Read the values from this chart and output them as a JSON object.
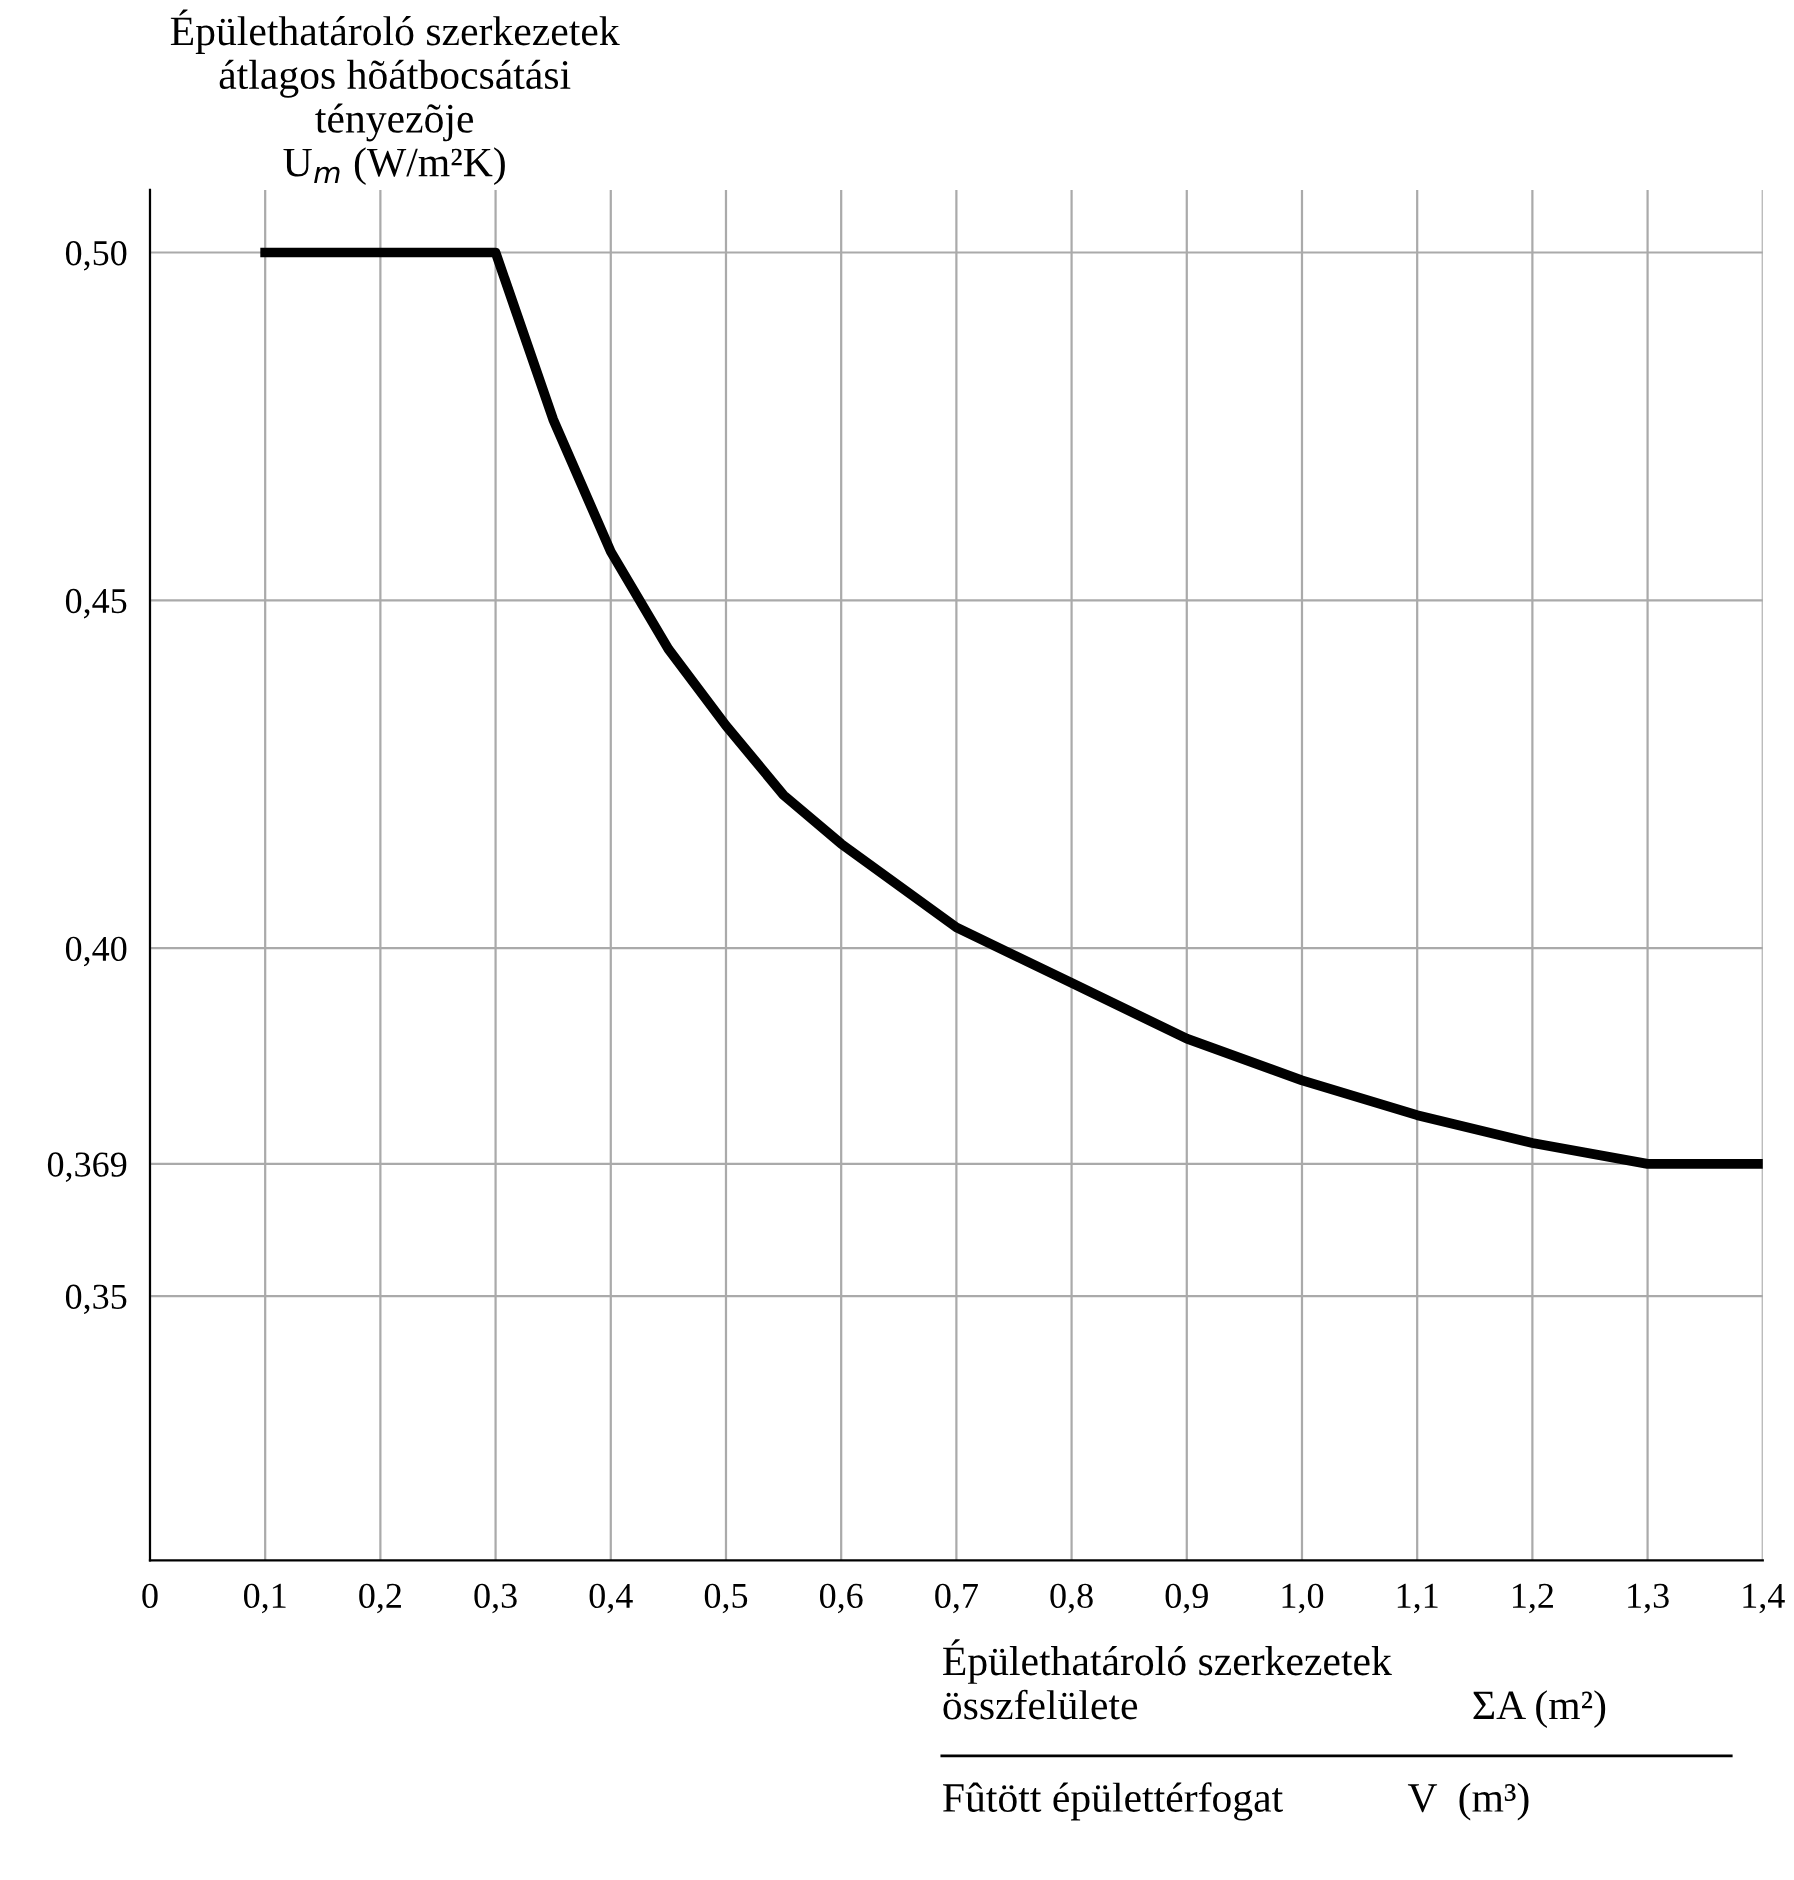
{
  "chart_data": {
    "type": "line",
    "ylabel": "Épülethatároló szerkezetek\nátlagos hõátbocsátási\ntényezõje\nU$_{m}$ (W/m²K)",
    "xlabel": "Épülethatároló szerkezetek\nösszfelülete                                ΣA (m²)",
    "annotations": [
      "Fûtött épülettérfogat            V  (m³)"
    ],
    "x": [
      0.1,
      0.3,
      0.35,
      0.4,
      0.45,
      0.5,
      0.55,
      0.6,
      0.65,
      0.7,
      0.8,
      0.9,
      1.0,
      1.1,
      1.2,
      1.3,
      1.4
    ],
    "series": [
      {
        "color": "#000000",
        "values": [
          0.5,
          0.5,
          0.476,
          0.457,
          0.443,
          0.432,
          0.422,
          0.415,
          0.409,
          0.403,
          0.395,
          0.387,
          0.381,
          0.376,
          0.372,
          0.369,
          0.369
        ]
      }
    ],
    "xlim": [
      0,
      1.4
    ],
    "ylim": [
      0.312,
      0.509
    ],
    "xticks": [
      0,
      {
        "value": 0.1,
        "label": "0,1"
      },
      {
        "value": 0.2,
        "label": "0,2"
      },
      {
        "value": 0.3,
        "label": "0,3"
      },
      {
        "value": 0.4,
        "label": "0,4"
      },
      {
        "value": 0.5,
        "label": "0,5"
      },
      {
        "value": 0.6,
        "label": "0,6"
      },
      {
        "value": 0.7,
        "label": "0,7"
      },
      {
        "value": 0.8,
        "label": "0,8"
      },
      {
        "value": 0.9,
        "label": "0,9"
      },
      {
        "value": 1.0,
        "label": "1,0"
      },
      {
        "value": 1.1,
        "label": "1,1"
      },
      {
        "value": 1.2,
        "label": "1,2"
      },
      {
        "value": 1.3,
        "label": "1,3"
      },
      {
        "value": 1.4,
        "label": "1,4"
      }
    ],
    "yticks": [
      {
        "value": 0.35,
        "label": "0,35"
      },
      {
        "value": 0.369,
        "label": "0,369"
      },
      {
        "value": 0.4,
        "label": "0,40"
      },
      {
        "value": 0.45,
        "label": "0,45"
      },
      {
        "value": 0.5,
        "label": "0,50"
      }
    ],
    "grid": true,
    "line_style": "solid",
    "marker": "none",
    "legend": false
  }
}
